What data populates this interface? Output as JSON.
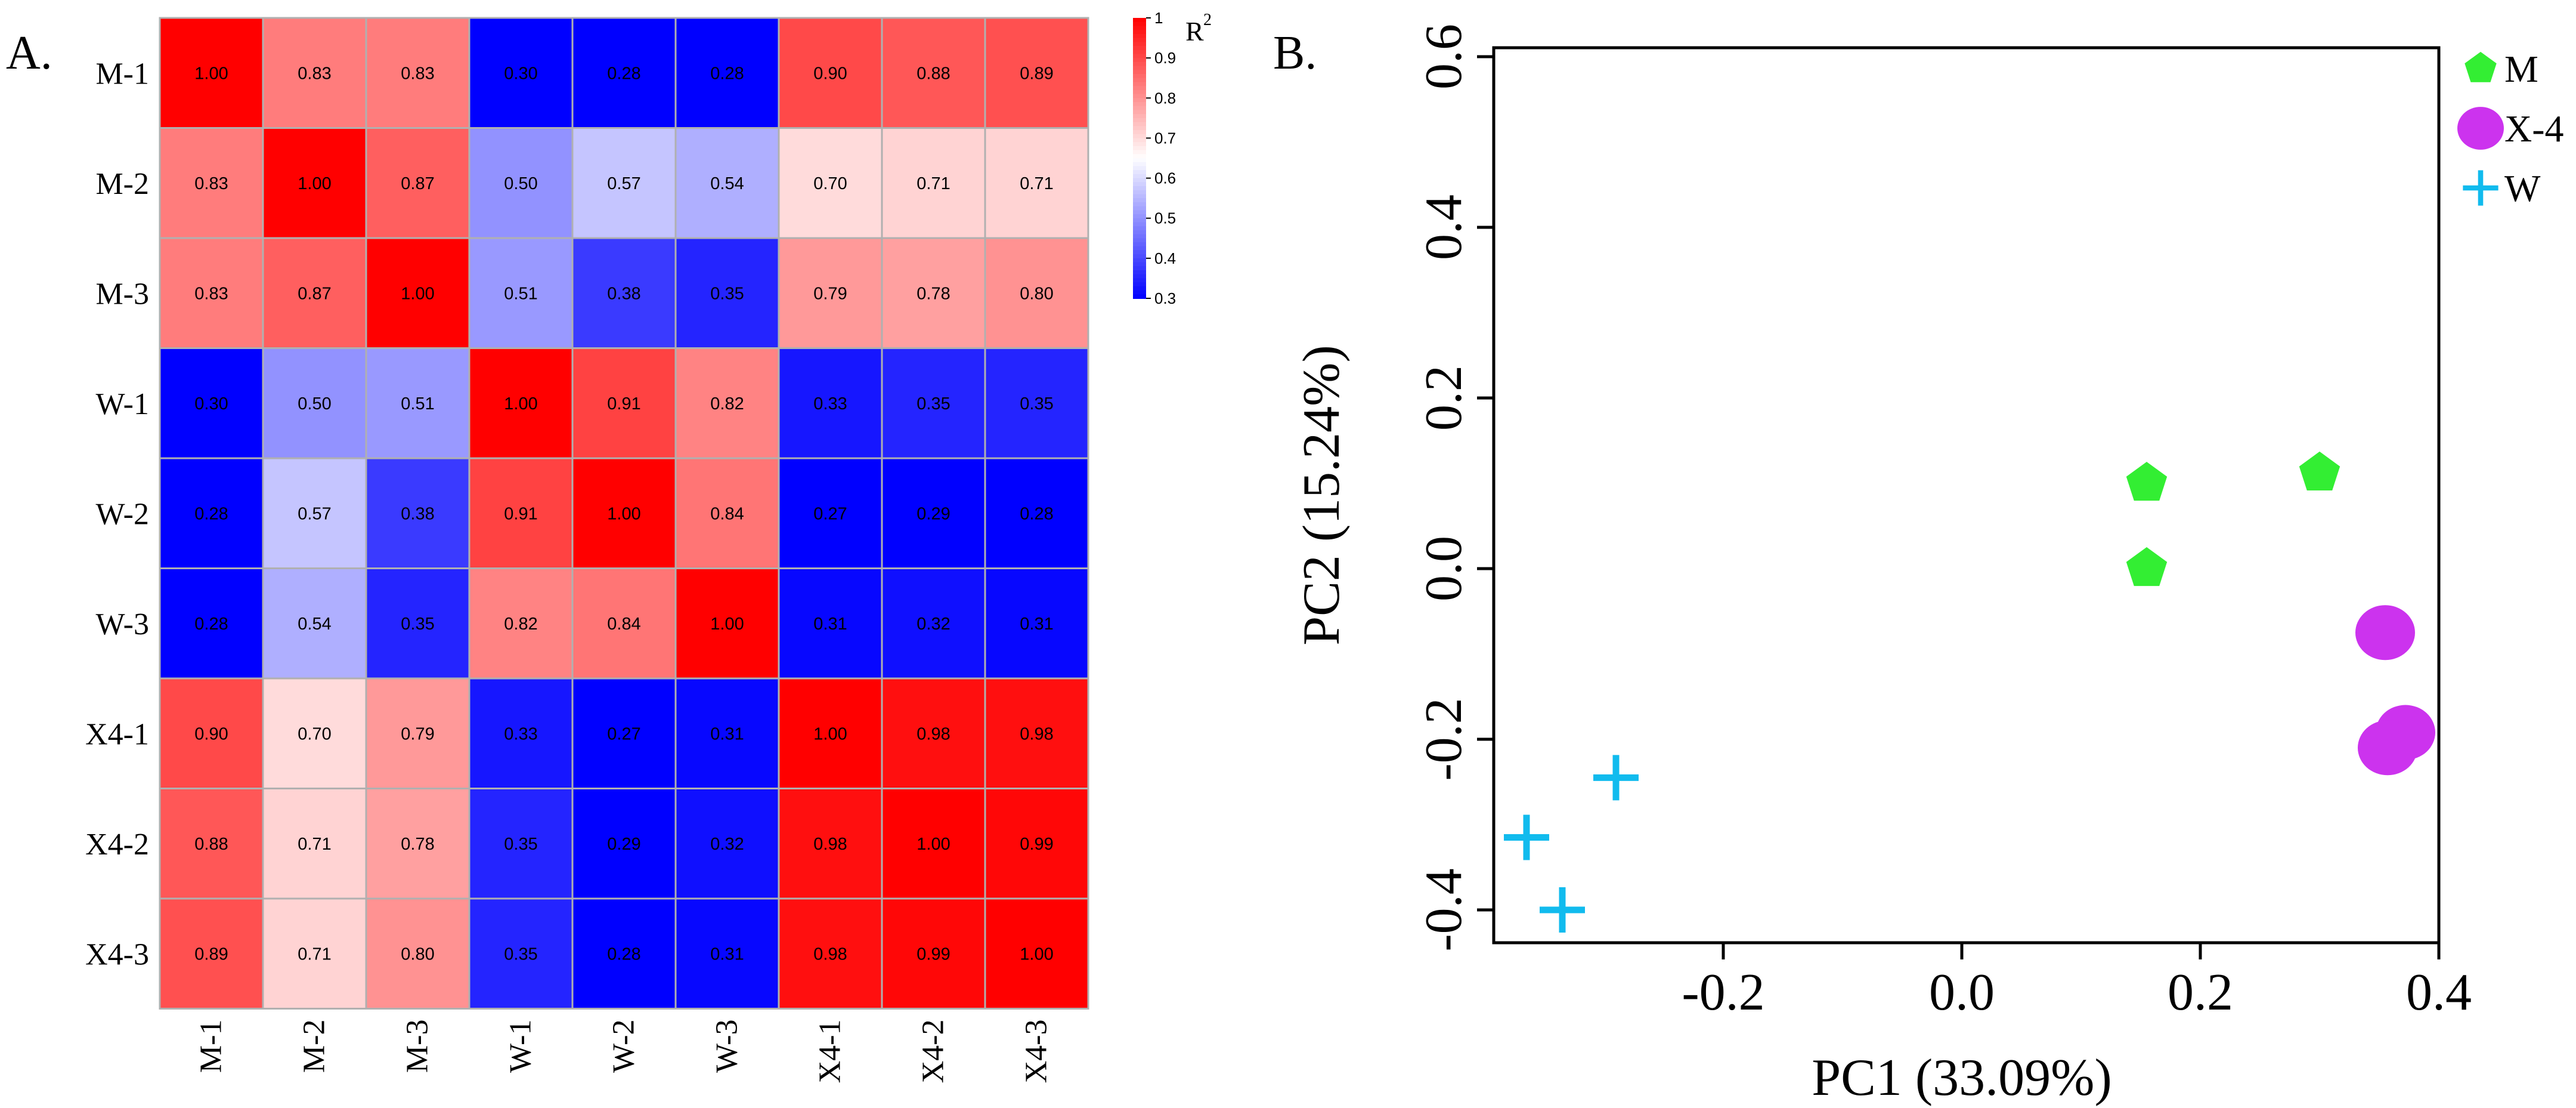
{
  "chart_data": [
    {
      "type": "heatmap",
      "panel_label": "A.",
      "rows": [
        "M-1",
        "M-2",
        "M-3",
        "W-1",
        "W-2",
        "W-3",
        "X4-1",
        "X4-2",
        "X4-3"
      ],
      "columns": [
        "M-1",
        "M-2",
        "M-3",
        "W-1",
        "W-2",
        "W-3",
        "X4-1",
        "X4-2",
        "X4-3"
      ],
      "values": [
        [
          1.0,
          0.83,
          0.83,
          0.3,
          0.28,
          0.28,
          0.9,
          0.88,
          0.89
        ],
        [
          0.83,
          1.0,
          0.87,
          0.5,
          0.57,
          0.54,
          0.7,
          0.71,
          0.71
        ],
        [
          0.83,
          0.87,
          1.0,
          0.51,
          0.38,
          0.35,
          0.79,
          0.78,
          0.8
        ],
        [
          0.3,
          0.5,
          0.51,
          1.0,
          0.91,
          0.82,
          0.33,
          0.35,
          0.35
        ],
        [
          0.28,
          0.57,
          0.38,
          0.91,
          1.0,
          0.84,
          0.27,
          0.29,
          0.28
        ],
        [
          0.28,
          0.54,
          0.35,
          0.82,
          0.84,
          1.0,
          0.31,
          0.32,
          0.31
        ],
        [
          0.9,
          0.7,
          0.79,
          0.33,
          0.27,
          0.31,
          1.0,
          0.98,
          0.98
        ],
        [
          0.88,
          0.71,
          0.78,
          0.35,
          0.29,
          0.32,
          0.98,
          1.0,
          0.99
        ],
        [
          0.89,
          0.71,
          0.8,
          0.35,
          0.28,
          0.31,
          0.98,
          0.99,
          1.0
        ]
      ],
      "colorscale": {
        "title": "R",
        "title_superscript": "2",
        "min": 0.3,
        "max": 1,
        "ticks": [
          "1",
          "0.9",
          "0.8",
          "0.7",
          "0.6",
          "0.5",
          "0.4",
          "0.3"
        ],
        "low_color": "#0000ff",
        "mid_color": "#ffffff",
        "high_color": "#ff0000",
        "mid_value": 0.65
      }
    },
    {
      "type": "scatter",
      "panel_label": "B.",
      "xlabel": "PC1 (33.09%)",
      "ylabel": "PC2 (15.24%)",
      "xlim": [
        -0.4,
        0.4
      ],
      "ylim": [
        -0.44,
        0.6
      ],
      "xticks": [
        "-0.2",
        "0.0",
        "0.2",
        "0.4"
      ],
      "xtick_values": [
        -0.2,
        0.0,
        0.2,
        0.4
      ],
      "yticks": [
        "-0.4",
        "-0.2",
        "0.0",
        "0.2",
        "0.4",
        "0.6"
      ],
      "ytick_values": [
        -0.4,
        -0.2,
        0.0,
        0.2,
        0.4,
        0.6
      ],
      "legend_position": "top-right",
      "series": [
        {
          "name": "M",
          "marker": "pentagon",
          "color": "#33ee33",
          "points": [
            [
              0.155,
              0.1
            ],
            [
              0.3,
              0.112
            ],
            [
              0.155,
              0.0
            ]
          ]
        },
        {
          "name": "X-4",
          "marker": "circle",
          "color": "#cc33ee",
          "points": [
            [
              0.355,
              -0.075
            ],
            [
              0.372,
              -0.192
            ],
            [
              0.357,
              -0.21
            ]
          ]
        },
        {
          "name": "W",
          "marker": "plus",
          "color": "#11bbee",
          "points": [
            [
              -0.29,
              -0.245
            ],
            [
              -0.365,
              -0.315
            ],
            [
              -0.335,
              -0.4
            ]
          ]
        }
      ]
    }
  ]
}
